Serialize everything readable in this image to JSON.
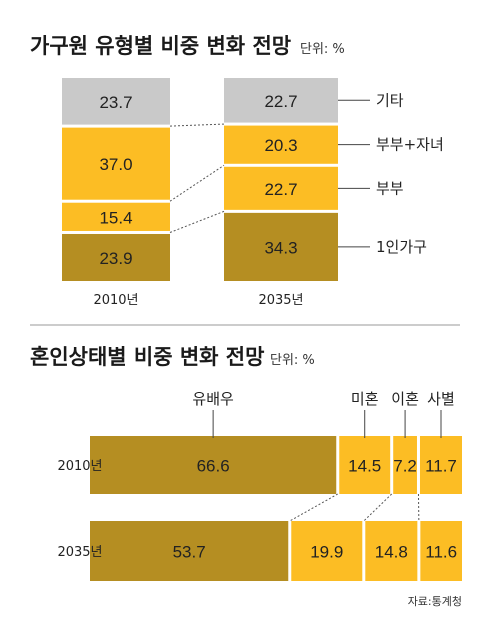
{
  "colors": {
    "gray": "#c9c9c9",
    "yellow": "#fcbd24",
    "olive": "#b58e22",
    "divider": "#999999"
  },
  "chart_data": [
    {
      "type": "bar",
      "stacked": true,
      "orientation": "vertical",
      "title": "가구원 유형별 비중 변화 전망",
      "unit": "단위: %",
      "categories": [
        "2010년",
        "2035년"
      ],
      "series": [
        {
          "name": "1인가구",
          "color": "olive",
          "values": [
            23.9,
            34.3
          ]
        },
        {
          "name": "부부",
          "color": "yellow",
          "values": [
            15.4,
            22.7
          ]
        },
        {
          "name": "부부+자녀",
          "color": "yellow",
          "values": [
            37.0,
            20.3
          ]
        },
        {
          "name": "기타",
          "color": "gray",
          "values": [
            23.7,
            22.7
          ]
        }
      ]
    },
    {
      "type": "bar",
      "stacked": true,
      "orientation": "horizontal",
      "title": "혼인상태별 비중 변화 전망",
      "unit": "단위: %",
      "categories": [
        "2010년",
        "2035년"
      ],
      "series": [
        {
          "name": "유배우",
          "color": "olive",
          "values": [
            66.6,
            53.7
          ]
        },
        {
          "name": "미혼",
          "color": "yellow",
          "values": [
            14.5,
            19.9
          ]
        },
        {
          "name": "이혼",
          "color": "yellow",
          "values": [
            7.2,
            14.8
          ]
        },
        {
          "name": "사별",
          "color": "yellow",
          "values": [
            11.7,
            11.6
          ]
        }
      ]
    }
  ],
  "source": "자료:통계청"
}
